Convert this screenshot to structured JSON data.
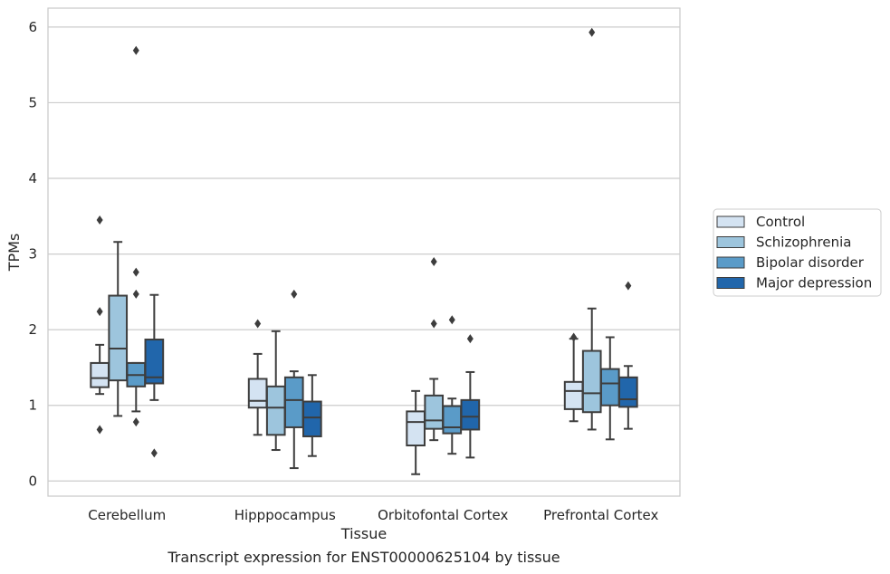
{
  "chart_data": {
    "type": "box",
    "xlabel": "Tissue",
    "ylabel": "TPMs",
    "ylim": [
      -0.2,
      6.25
    ],
    "yticks": [
      0,
      1,
      2,
      3,
      4,
      5,
      6
    ],
    "grid": true,
    "legend_position": "right",
    "categories": [
      "Cerebellum",
      "Hipppocampus",
      "Orbitofontal Cortex",
      "Prefrontal Cortex"
    ],
    "series": [
      {
        "name": "Control",
        "color": "#d4e3f2",
        "boxes": [
          {
            "whislo": 1.15,
            "q1": 1.24,
            "med": 1.36,
            "q3": 1.56,
            "whishi": 1.8,
            "fliers": [
              3.45,
              2.24,
              0.68
            ]
          },
          {
            "whislo": 0.61,
            "q1": 0.97,
            "med": 1.06,
            "q3": 1.35,
            "whishi": 1.68,
            "fliers": [
              2.08
            ]
          },
          {
            "whislo": 0.09,
            "q1": 0.47,
            "med": 0.78,
            "q3": 0.92,
            "whishi": 1.19,
            "fliers": []
          },
          {
            "whislo": 0.79,
            "q1": 0.95,
            "med": 1.19,
            "q3": 1.31,
            "whishi": 1.88,
            "fliers": [
              1.9
            ]
          }
        ]
      },
      {
        "name": "Schizophrenia",
        "color": "#9dc5dd",
        "boxes": [
          {
            "whislo": 0.86,
            "q1": 1.33,
            "med": 1.75,
            "q3": 2.45,
            "whishi": 3.16,
            "fliers": []
          },
          {
            "whislo": 0.41,
            "q1": 0.61,
            "med": 0.97,
            "q3": 1.25,
            "whishi": 1.98,
            "fliers": []
          },
          {
            "whislo": 0.54,
            "q1": 0.69,
            "med": 0.8,
            "q3": 1.13,
            "whishi": 1.35,
            "fliers": [
              2.9,
              2.08
            ]
          },
          {
            "whislo": 0.68,
            "q1": 0.91,
            "med": 1.16,
            "q3": 1.72,
            "whishi": 2.28,
            "fliers": [
              5.93
            ]
          }
        ]
      },
      {
        "name": "Bipolar disorder",
        "color": "#5a9bc8",
        "boxes": [
          {
            "whislo": 0.92,
            "q1": 1.25,
            "med": 1.4,
            "q3": 1.56,
            "whishi": 1.56,
            "fliers": [
              5.69,
              2.76,
              2.47,
              0.78
            ]
          },
          {
            "whislo": 0.17,
            "q1": 0.71,
            "med": 1.07,
            "q3": 1.37,
            "whishi": 1.45,
            "fliers": [
              2.47
            ]
          },
          {
            "whislo": 0.36,
            "q1": 0.63,
            "med": 0.71,
            "q3": 0.99,
            "whishi": 1.09,
            "fliers": [
              2.13
            ]
          },
          {
            "whislo": 0.55,
            "q1": 1.0,
            "med": 1.29,
            "q3": 1.48,
            "whishi": 1.9,
            "fliers": []
          }
        ]
      },
      {
        "name": "Major depression",
        "color": "#2166ab",
        "boxes": [
          {
            "whislo": 1.07,
            "q1": 1.29,
            "med": 1.37,
            "q3": 1.87,
            "whishi": 2.46,
            "fliers": [
              0.37
            ]
          },
          {
            "whislo": 0.33,
            "q1": 0.59,
            "med": 0.84,
            "q3": 1.05,
            "whishi": 1.4,
            "fliers": []
          },
          {
            "whislo": 0.31,
            "q1": 0.68,
            "med": 0.85,
            "q3": 1.07,
            "whishi": 1.44,
            "fliers": [
              1.88
            ]
          },
          {
            "whislo": 0.69,
            "q1": 0.98,
            "med": 1.08,
            "q3": 1.37,
            "whishi": 1.52,
            "fliers": [
              2.58
            ]
          }
        ]
      }
    ]
  },
  "caption": "Transcript expression for ENST00000625104 by tissue",
  "colors": {
    "grid": "#cccccc",
    "line": "#3d3d3d",
    "frame": "#cccccc"
  }
}
